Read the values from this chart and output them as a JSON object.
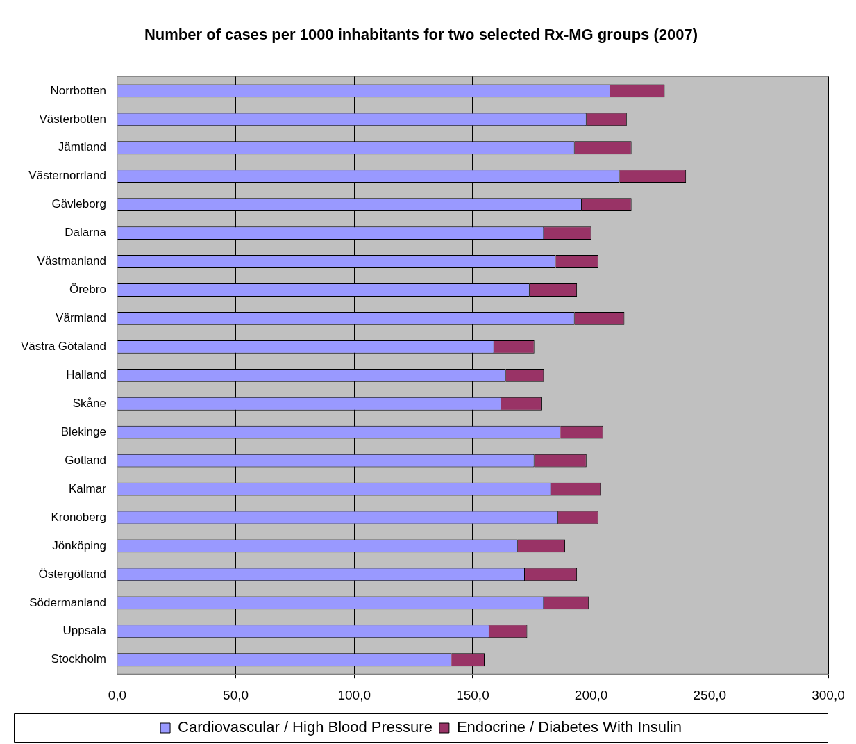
{
  "chart_data": {
    "type": "bar",
    "orientation": "horizontal",
    "stacked": true,
    "title": "Number of cases per 1000 inhabitants for two selected Rx-MG groups (2007)",
    "categories": [
      "Norrbotten",
      "Västerbotten",
      "Jämtland",
      "Västernorrland",
      "Gävleborg",
      "Dalarna",
      "Västmanland",
      "Örebro",
      "Värmland",
      "Västra Götaland",
      "Halland",
      "Skåne",
      "Blekinge",
      "Gotland",
      "Kalmar",
      "Kronoberg",
      "Jönköping",
      "Östergötland",
      "Södermanland",
      "Uppsala",
      "Stockholm"
    ],
    "series": [
      {
        "name": "Cardiovascular / High Blood Pressure",
        "color": "#9999ff",
        "values": [
          208,
          198,
          193,
          212,
          196,
          180,
          185,
          174,
          193,
          159,
          164,
          162,
          187,
          176,
          183,
          186,
          169,
          172,
          180,
          157,
          141
        ]
      },
      {
        "name": "Endocrine / Diabetes With Insulin",
        "color": "#993366",
        "values": [
          23,
          17,
          24,
          28,
          21,
          20,
          18,
          20,
          21,
          17,
          16,
          17,
          18,
          22,
          21,
          17,
          20,
          22,
          19,
          16,
          14
        ]
      }
    ],
    "xlim": [
      0,
      300
    ],
    "xticks": [
      {
        "value": 0,
        "label": "0,0"
      },
      {
        "value": 50,
        "label": "50,0"
      },
      {
        "value": 100,
        "label": "100,0"
      },
      {
        "value": 150,
        "label": "150,0"
      },
      {
        "value": 200,
        "label": "200,0"
      },
      {
        "value": 250,
        "label": "250,0"
      },
      {
        "value": 300,
        "label": "300,0"
      }
    ],
    "grid": "x",
    "legend": "bottom"
  }
}
